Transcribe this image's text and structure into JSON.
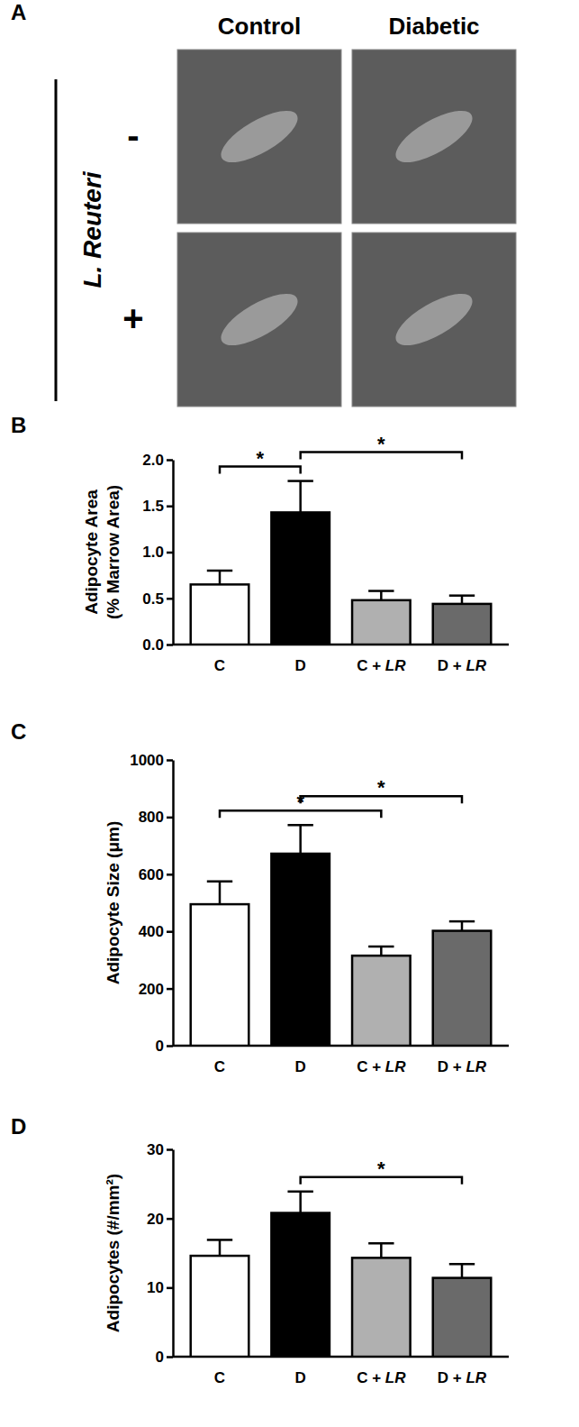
{
  "panel_a": {
    "label": "A",
    "columns": [
      "Control",
      "Diabetic"
    ],
    "row_title": "L. Reuteri",
    "rows": [
      "-",
      "+"
    ]
  },
  "chart_data": [
    {
      "type": "bar",
      "title": "B",
      "y_label": [
        "Adipocyte Area",
        "(% Marrow Area)"
      ],
      "categories": [
        "C",
        "D",
        "C + LR",
        "D + LR"
      ],
      "values": [
        0.65,
        1.43,
        0.48,
        0.44
      ],
      "errors": [
        0.15,
        0.34,
        0.1,
        0.09
      ],
      "colors": [
        "#ffffff",
        "#000000",
        "#b0b0b0",
        "#6a6a6a"
      ],
      "ylim": [
        0,
        2
      ],
      "yticks": [
        {
          "value": 0,
          "label": "0.0"
        },
        0.5,
        {
          "value": 1,
          "label": "1.0"
        },
        1.5,
        {
          "value": 2,
          "label": "2.0"
        }
      ],
      "annotations": [
        {
          "text": "*",
          "between": [
            "C",
            "D"
          ]
        },
        {
          "text": "*",
          "between": [
            "D",
            "D + LR"
          ]
        }
      ]
    },
    {
      "type": "bar",
      "title": "C",
      "y_label": [
        "Adipocyte Size (μm)"
      ],
      "categories": [
        "C",
        "D",
        "C + LR",
        "D + LR"
      ],
      "values": [
        495,
        672,
        315,
        402
      ],
      "errors": [
        80,
        100,
        32,
        33
      ],
      "colors": [
        "#ffffff",
        "#000000",
        "#b0b0b0",
        "#6a6a6a"
      ],
      "ylim": [
        0,
        1000
      ],
      "yticks": [
        0,
        200,
        400,
        600,
        800,
        1000
      ],
      "annotations": [
        {
          "text": "*",
          "between": [
            "C",
            "C + LR"
          ]
        },
        {
          "text": "*",
          "between": [
            "D",
            "D + LR"
          ]
        }
      ]
    },
    {
      "type": "bar",
      "title": "D",
      "y_label": [
        "Adipocytes (#/mm²)"
      ],
      "categories": [
        "C",
        "D",
        "C + LR",
        "D + LR"
      ],
      "values": [
        14.6,
        20.8,
        14.3,
        11.4
      ],
      "errors": [
        2.3,
        3.1,
        2.1,
        2.0
      ],
      "colors": [
        "#ffffff",
        "#000000",
        "#b0b0b0",
        "#6a6a6a"
      ],
      "ylim": [
        0,
        30
      ],
      "yticks": [
        0,
        10,
        20,
        30
      ],
      "annotations": [
        {
          "text": "*",
          "between": [
            "D",
            "D + LR"
          ]
        }
      ]
    }
  ]
}
